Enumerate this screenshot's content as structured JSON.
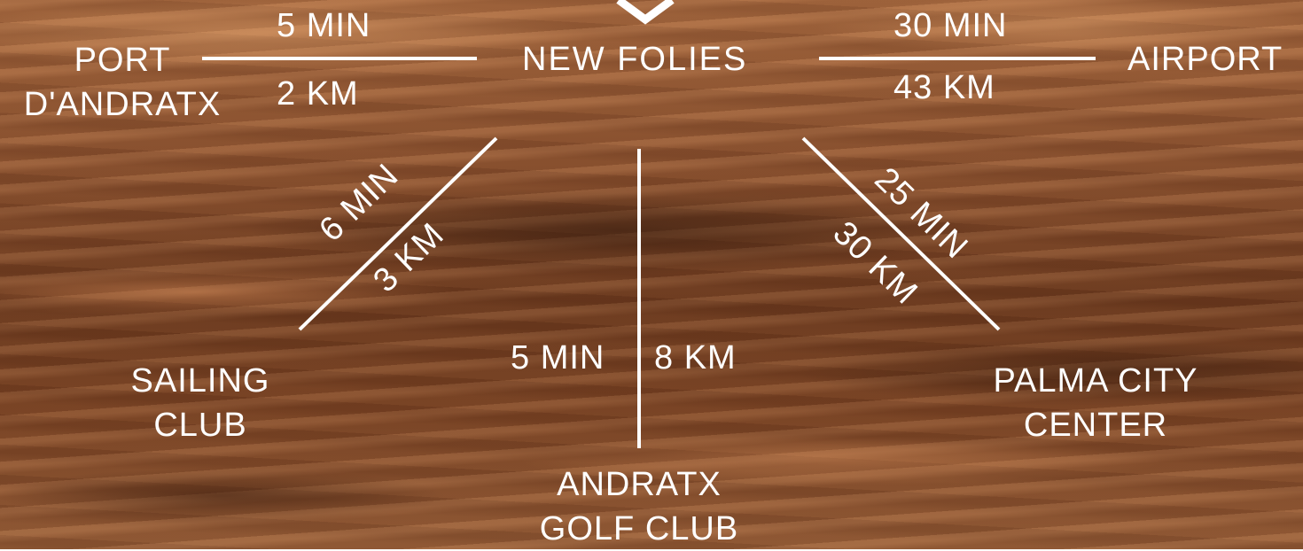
{
  "origin": {
    "label": "NEW FOLIES"
  },
  "routes": {
    "port_andratx": {
      "name_line1": "PORT",
      "name_line2": "D'ANDRATX",
      "time": "5 MIN",
      "distance": "2 KM"
    },
    "airport": {
      "name": "AIRPORT",
      "time": "30 MIN",
      "distance": "43 KM"
    },
    "sailing_club": {
      "name_line1": "SAILING",
      "name_line2": "CLUB",
      "time": "6 MIN",
      "distance": "3 KM"
    },
    "golf_club": {
      "name_line1": "ANDRATX",
      "name_line2": "GOLF CLUB",
      "time": "5 MIN",
      "distance": "8 KM"
    },
    "palma": {
      "name_line1": "PALMA CITY",
      "name_line2": "CENTER",
      "time": "25 MIN",
      "distance": "30 KM"
    }
  },
  "colors": {
    "text": "#ffffff",
    "line": "#ffffff",
    "water": "#8b5230"
  }
}
